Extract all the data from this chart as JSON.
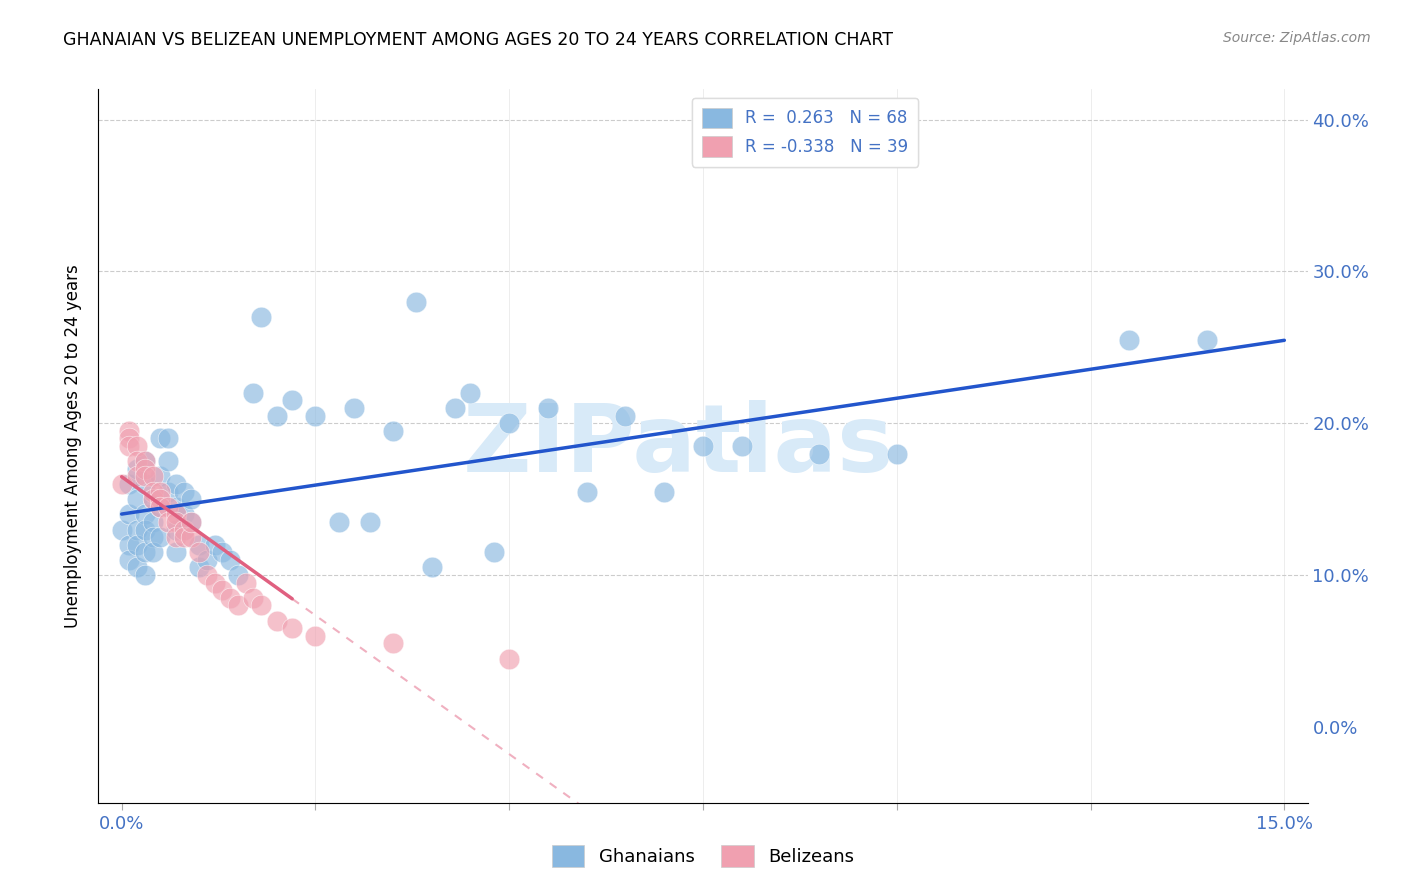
{
  "title": "GHANAIAN VS BELIZEAN UNEMPLOYMENT AMONG AGES 20 TO 24 YEARS CORRELATION CHART",
  "source": "Source: ZipAtlas.com",
  "ylabel_label": "Unemployment Among Ages 20 to 24 years",
  "ghanaian_color": "#89b8e0",
  "belizean_color": "#f0a0b0",
  "trend_ghanaian_color": "#2255cc",
  "trend_belizean_color": "#e06080",
  "trend_belizean_dash_color": "#f0b0c0",
  "watermark_text": "ZIPatlas",
  "watermark_color": "#d8eaf8",
  "xlim": [
    0.0,
    0.15
  ],
  "ylim": [
    -0.05,
    0.42
  ],
  "xticks": [
    0.0,
    0.025,
    0.05,
    0.075,
    0.1,
    0.125,
    0.15
  ],
  "xtick_labels": [
    "0.0%",
    "",
    "",
    "",
    "",
    "",
    "15.0%"
  ],
  "yticks_right": [
    0.0,
    0.1,
    0.2,
    0.3,
    0.4
  ],
  "ytick_labels_right": [
    "0.0%",
    "10.0%",
    "20.0%",
    "30.0%",
    "40.0%"
  ],
  "gh_x": [
    0.0,
    0.001,
    0.001,
    0.001,
    0.001,
    0.002,
    0.002,
    0.002,
    0.002,
    0.002,
    0.003,
    0.003,
    0.003,
    0.003,
    0.003,
    0.003,
    0.004,
    0.004,
    0.004,
    0.004,
    0.005,
    0.005,
    0.005,
    0.005,
    0.006,
    0.006,
    0.006,
    0.007,
    0.007,
    0.007,
    0.007,
    0.008,
    0.008,
    0.008,
    0.009,
    0.009,
    0.01,
    0.01,
    0.011,
    0.012,
    0.013,
    0.014,
    0.015,
    0.017,
    0.018,
    0.02,
    0.022,
    0.025,
    0.028,
    0.03,
    0.032,
    0.035,
    0.038,
    0.04,
    0.043,
    0.045,
    0.048,
    0.05,
    0.055,
    0.06,
    0.065,
    0.07,
    0.075,
    0.08,
    0.09,
    0.1,
    0.13,
    0.14
  ],
  "gh_y": [
    0.13,
    0.12,
    0.14,
    0.16,
    0.11,
    0.15,
    0.13,
    0.17,
    0.12,
    0.105,
    0.14,
    0.16,
    0.175,
    0.13,
    0.115,
    0.1,
    0.15,
    0.135,
    0.125,
    0.115,
    0.19,
    0.165,
    0.145,
    0.125,
    0.155,
    0.175,
    0.19,
    0.145,
    0.16,
    0.13,
    0.115,
    0.155,
    0.14,
    0.13,
    0.15,
    0.135,
    0.105,
    0.12,
    0.11,
    0.12,
    0.115,
    0.11,
    0.1,
    0.22,
    0.27,
    0.205,
    0.215,
    0.205,
    0.135,
    0.21,
    0.135,
    0.195,
    0.28,
    0.105,
    0.21,
    0.22,
    0.115,
    0.2,
    0.21,
    0.155,
    0.205,
    0.155,
    0.185,
    0.185,
    0.18,
    0.18,
    0.255,
    0.255
  ],
  "be_x": [
    0.0,
    0.001,
    0.001,
    0.001,
    0.002,
    0.002,
    0.002,
    0.003,
    0.003,
    0.003,
    0.004,
    0.004,
    0.004,
    0.005,
    0.005,
    0.005,
    0.006,
    0.006,
    0.007,
    0.007,
    0.007,
    0.008,
    0.008,
    0.009,
    0.009,
    0.01,
    0.011,
    0.012,
    0.013,
    0.014,
    0.015,
    0.016,
    0.017,
    0.018,
    0.02,
    0.022,
    0.025,
    0.035,
    0.05
  ],
  "be_y": [
    0.16,
    0.195,
    0.19,
    0.185,
    0.185,
    0.175,
    0.165,
    0.175,
    0.17,
    0.165,
    0.165,
    0.155,
    0.15,
    0.155,
    0.15,
    0.145,
    0.145,
    0.135,
    0.14,
    0.135,
    0.125,
    0.13,
    0.125,
    0.125,
    0.135,
    0.115,
    0.1,
    0.095,
    0.09,
    0.085,
    0.08,
    0.095,
    0.085,
    0.08,
    0.07,
    0.065,
    0.06,
    0.055,
    0.045
  ]
}
